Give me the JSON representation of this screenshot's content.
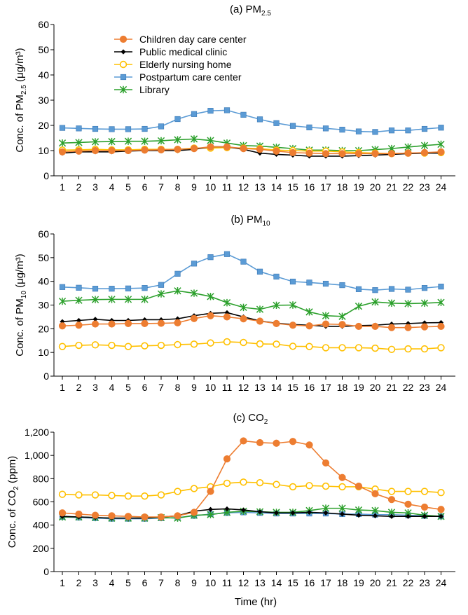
{
  "figure": {
    "x_axis_title": "Time (hr)",
    "legend": [
      {
        "name": "Children day care center",
        "color": "#ED7D31",
        "marker": "circle-filled"
      },
      {
        "name": "Public medical clinic",
        "color": "#000000",
        "marker": "diamond"
      },
      {
        "name": "Elderly nursing home",
        "color": "#FFC000",
        "marker": "circle-open"
      },
      {
        "name": "Postpartum care center",
        "color": "#5B9BD5",
        "marker": "square"
      },
      {
        "name": "Library",
        "color": "#2CA02C",
        "marker": "asterisk"
      }
    ]
  },
  "chart_data": [
    {
      "type": "line",
      "title": "(a) PM",
      "title_sub": "2.5",
      "ylabel": "Conc. of PM",
      "ylabel_sub": "2.5",
      "ylabel_unit": " (μg/m³)",
      "ylim": [
        0,
        60
      ],
      "yticks": [
        "0",
        "10",
        "20",
        "30",
        "40",
        "50",
        "60"
      ],
      "x": [
        1,
        2,
        3,
        4,
        5,
        6,
        7,
        8,
        9,
        10,
        11,
        12,
        13,
        14,
        15,
        16,
        17,
        18,
        19,
        20,
        21,
        22,
        23,
        24
      ],
      "series": [
        {
          "name": "Children day care center",
          "values": [
            9.5,
            9.8,
            10,
            10,
            10,
            10.2,
            10.3,
            10.5,
            10.8,
            11.5,
            11.5,
            10.8,
            10.5,
            9.8,
            9.2,
            9,
            8.8,
            8.8,
            8.8,
            8.8,
            8.8,
            9,
            9.2,
            9.5
          ]
        },
        {
          "name": "Public medical clinic",
          "values": [
            9,
            9.5,
            9.5,
            9.5,
            9.8,
            10,
            10,
            10,
            10.5,
            11.5,
            11.5,
            10.5,
            9,
            8.5,
            8.2,
            7.8,
            7.8,
            7.8,
            8,
            8.2,
            8.5,
            8.8,
            9,
            9
          ]
        },
        {
          "name": "Elderly nursing home",
          "values": [
            10.2,
            10.3,
            10.5,
            10.3,
            10.3,
            10.5,
            10.5,
            10.5,
            11,
            11,
            11.2,
            11,
            10.8,
            10.2,
            10,
            9.8,
            9.8,
            9.5,
            9.2,
            9,
            8.8,
            9,
            9,
            9.2
          ]
        },
        {
          "name": "Postpartum care center",
          "values": [
            19,
            18.8,
            18.6,
            18.5,
            18.5,
            18.6,
            19.6,
            22.5,
            24.5,
            25.8,
            26,
            24.2,
            22.4,
            20.9,
            19.8,
            19.2,
            18.8,
            18.3,
            17.6,
            17.4,
            18,
            18,
            18.6,
            19.1
          ]
        },
        {
          "name": "Library",
          "values": [
            13,
            13.2,
            13.5,
            13.6,
            13.7,
            13.7,
            13.9,
            14.3,
            14.6,
            14,
            13,
            12,
            11.8,
            11.3,
            10.8,
            10.2,
            10.2,
            10,
            10,
            10.4,
            10.8,
            11.4,
            12,
            12.5
          ]
        }
      ]
    },
    {
      "type": "line",
      "title": "(b) PM",
      "title_sub": "10",
      "ylabel": "Conc. of PM",
      "ylabel_sub": "10",
      "ylabel_unit": " (μg/m³)",
      "ylim": [
        0,
        60
      ],
      "yticks": [
        "0",
        "10",
        "20",
        "30",
        "40",
        "50",
        "60"
      ],
      "x": [
        1,
        2,
        3,
        4,
        5,
        6,
        7,
        8,
        9,
        10,
        11,
        12,
        13,
        14,
        15,
        16,
        17,
        18,
        19,
        20,
        21,
        22,
        23,
        24
      ],
      "series": [
        {
          "name": "Children day care center",
          "values": [
            21.2,
            21.5,
            22,
            22,
            22.2,
            22.2,
            22.3,
            22.5,
            24.3,
            25.5,
            25,
            24.2,
            23.2,
            22.2,
            21.5,
            21.2,
            22,
            21.8,
            21,
            21,
            20.5,
            20.5,
            20.8,
            21
          ]
        },
        {
          "name": "Public medical clinic",
          "values": [
            23,
            23.5,
            24,
            23.5,
            23.5,
            23.8,
            23.8,
            24.2,
            25.5,
            26.5,
            26.8,
            25,
            23.3,
            22.3,
            21.8,
            21.5,
            21,
            21,
            21.3,
            21.5,
            22,
            22.2,
            22.5,
            22.6
          ]
        },
        {
          "name": "Elderly nursing home",
          "values": [
            12.5,
            13,
            13.2,
            13,
            12.5,
            12.8,
            13,
            13.3,
            13.5,
            14,
            14.5,
            14.2,
            13.6,
            13.5,
            12.6,
            12.5,
            12,
            12,
            12,
            11.8,
            11.3,
            11.5,
            11.5,
            12
          ]
        },
        {
          "name": "Postpartum care center",
          "values": [
            37.6,
            37.3,
            36.9,
            36.9,
            37,
            37.2,
            38.5,
            43.2,
            47.5,
            50.2,
            51.5,
            48.3,
            44.1,
            42,
            39.9,
            39.5,
            39,
            38.4,
            36.7,
            36.3,
            36.8,
            36.5,
            37.2,
            37.8
          ]
        },
        {
          "name": "Library",
          "values": [
            31.6,
            32,
            32.3,
            32.4,
            32.4,
            32.4,
            34.7,
            36,
            35,
            33.6,
            31,
            29,
            28.2,
            29.9,
            30,
            27.1,
            25.5,
            25.2,
            29.5,
            31.3,
            30.8,
            30.6,
            30.8,
            31.1
          ]
        }
      ]
    },
    {
      "type": "line",
      "title": "(c) CO",
      "title_sub": "2",
      "ylabel": "Conc. of CO",
      "ylabel_sub": "2",
      "ylabel_unit": " (ppm)",
      "ylim": [
        0,
        1200
      ],
      "yticks": [
        "0",
        "200",
        "400",
        "600",
        "800",
        "1,000",
        "1,200"
      ],
      "x": [
        1,
        2,
        3,
        4,
        5,
        6,
        7,
        8,
        9,
        10,
        11,
        12,
        13,
        14,
        15,
        16,
        17,
        18,
        19,
        20,
        21,
        22,
        23,
        24
      ],
      "series": [
        {
          "name": "Children day care center",
          "values": [
            505,
            495,
            485,
            480,
            475,
            470,
            470,
            480,
            510,
            690,
            970,
            1125,
            1110,
            1105,
            1120,
            1090,
            935,
            810,
            735,
            670,
            620,
            580,
            555,
            535
          ]
        },
        {
          "name": "Public medical clinic",
          "values": [
            475,
            470,
            465,
            460,
            460,
            460,
            470,
            480,
            520,
            535,
            540,
            530,
            515,
            505,
            505,
            510,
            505,
            495,
            485,
            480,
            475,
            475,
            475,
            475
          ]
        },
        {
          "name": "Elderly nursing home",
          "values": [
            665,
            660,
            660,
            655,
            650,
            650,
            660,
            690,
            715,
            730,
            760,
            770,
            765,
            750,
            730,
            740,
            735,
            730,
            730,
            710,
            690,
            690,
            690,
            680
          ]
        },
        {
          "name": "Postpartum care center",
          "values": [
            470,
            465,
            460,
            455,
            455,
            455,
            460,
            465,
            480,
            495,
            505,
            510,
            505,
            500,
            500,
            500,
            500,
            495,
            495,
            490,
            490,
            485,
            480,
            475
          ]
        },
        {
          "name": "Library",
          "values": [
            470,
            470,
            465,
            460,
            460,
            460,
            465,
            460,
            485,
            490,
            510,
            520,
            515,
            510,
            510,
            525,
            545,
            545,
            530,
            525,
            510,
            505,
            485,
            475
          ]
        }
      ]
    }
  ]
}
